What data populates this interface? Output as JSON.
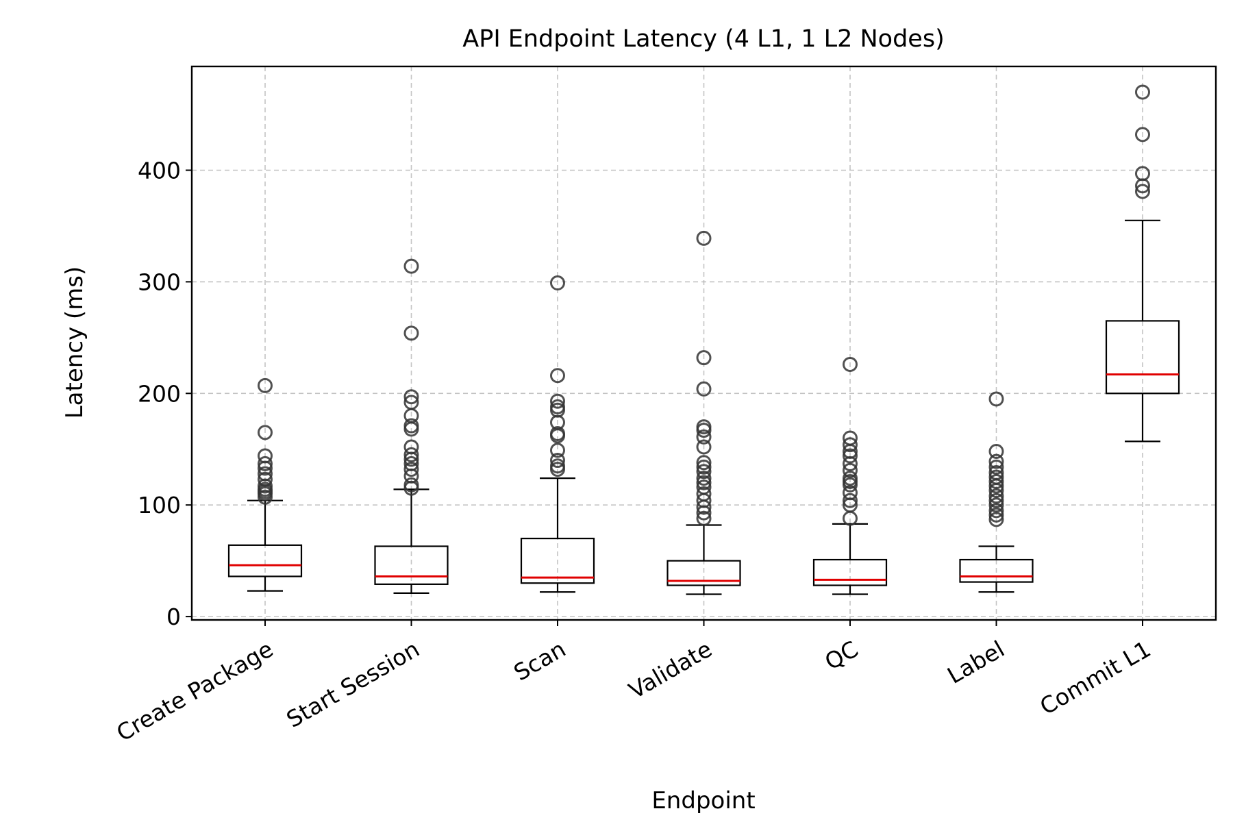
{
  "chart_data": {
    "type": "box",
    "title": "API Endpoint Latency (4 L1, 1 L2 Nodes)",
    "xlabel": "Endpoint",
    "ylabel": "Latency (ms)",
    "ylim": [
      -3,
      493
    ],
    "yticks": [
      0,
      100,
      200,
      300,
      400
    ],
    "grid": true,
    "categories": [
      "Create Package",
      "Start Session",
      "Scan",
      "Validate",
      "QC",
      "Label",
      "Commit L1"
    ],
    "boxes": [
      {
        "whislo": 23,
        "q1": 36,
        "med": 46,
        "q3": 64,
        "whishi": 104,
        "fliers": [
          107,
          110,
          112,
          114,
          117,
          123,
          128,
          133,
          137,
          144,
          165,
          207
        ]
      },
      {
        "whislo": 21,
        "q1": 29,
        "med": 36,
        "q3": 63,
        "whishi": 114,
        "fliers": [
          115,
          118,
          126,
          132,
          137,
          141,
          145,
          152,
          168,
          171,
          180,
          192,
          197,
          254,
          314
        ]
      },
      {
        "whislo": 22,
        "q1": 30,
        "med": 35,
        "q3": 70,
        "whishi": 124,
        "fliers": [
          132,
          135,
          140,
          149,
          162,
          164,
          174,
          185,
          188,
          193,
          216,
          299
        ]
      },
      {
        "whislo": 20,
        "q1": 28,
        "med": 32,
        "q3": 50,
        "whishi": 82,
        "fliers": [
          88,
          93,
          98,
          104,
          110,
          116,
          120,
          124,
          130,
          134,
          138,
          152,
          161,
          167,
          170,
          204,
          232,
          339
        ]
      },
      {
        "whislo": 20,
        "q1": 28,
        "med": 33,
        "q3": 51,
        "whishi": 83,
        "fliers": [
          88,
          100,
          104,
          111,
          118,
          121,
          124,
          131,
          137,
          144,
          148,
          154,
          160,
          226
        ]
      },
      {
        "whislo": 22,
        "q1": 31,
        "med": 36,
        "q3": 51,
        "whishi": 63,
        "fliers": [
          87,
          91,
          95,
          100,
          104,
          108,
          113,
          117,
          121,
          125,
          129,
          134,
          139,
          148,
          195
        ]
      },
      {
        "whislo": 157,
        "q1": 200,
        "med": 217,
        "q3": 265,
        "whishi": 355,
        "fliers": [
          381,
          386,
          397,
          432,
          470
        ]
      }
    ]
  }
}
